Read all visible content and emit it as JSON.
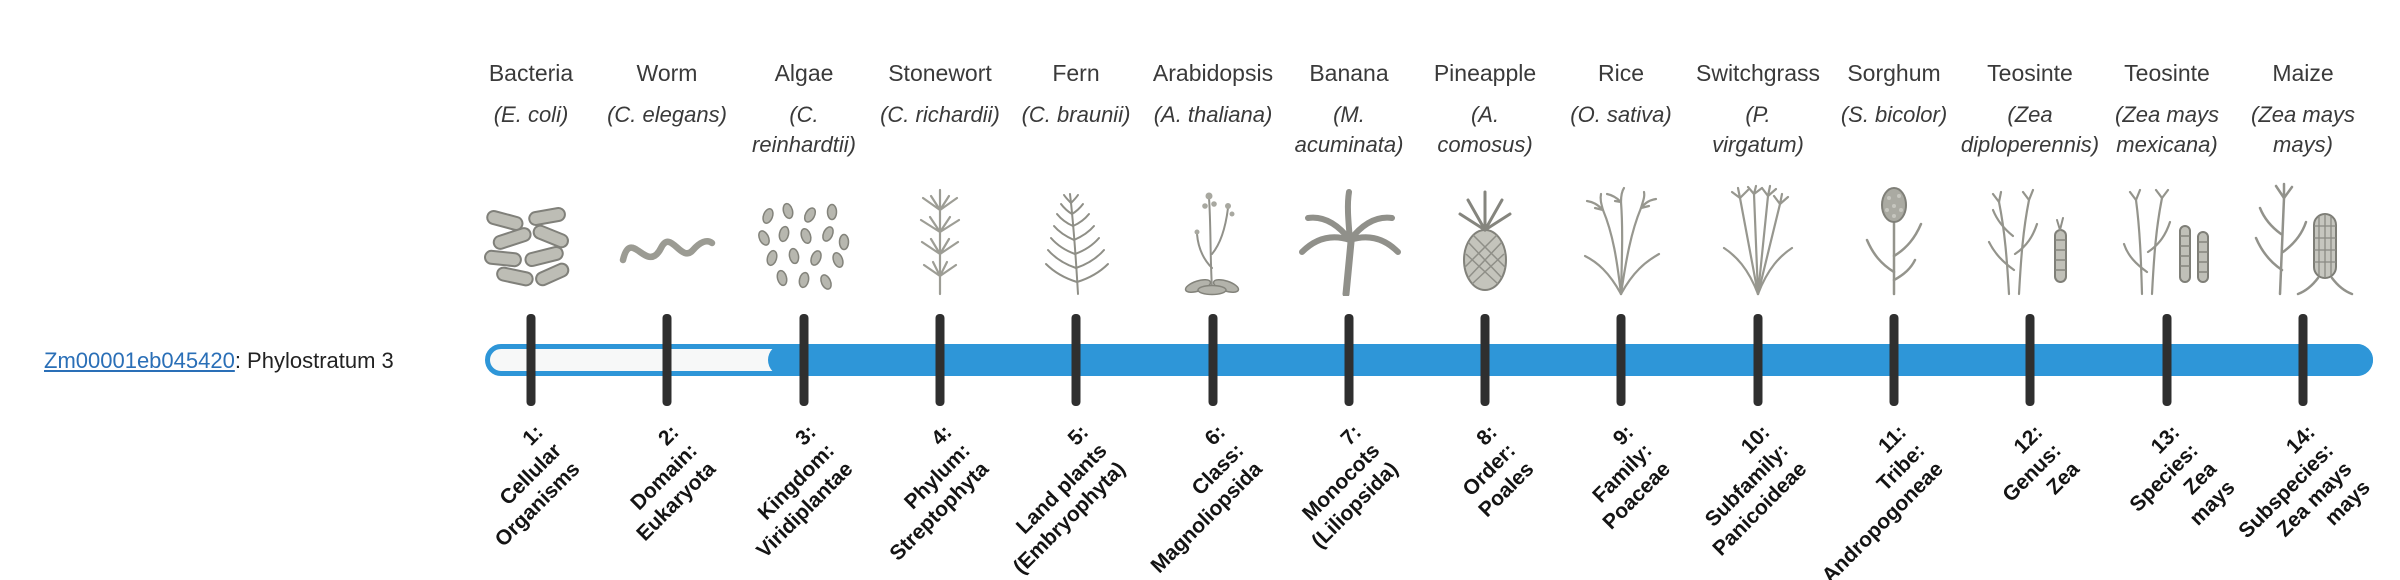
{
  "gene": {
    "id": "Zm00001eb045420",
    "suffix": ": Phylostratum 3",
    "phylostratum": 3
  },
  "bar": {
    "filled_from_stratum": 3,
    "total_strata": 14
  },
  "colors": {
    "bar_fill": "#2e96d8",
    "link": "#2a6fb7",
    "tick": "#2f2f2f"
  },
  "columns": [
    {
      "common": "Bacteria",
      "scientific": "(E. coli)",
      "icon": "bacteria-icon",
      "stratum_label": "1:\nCellular\nOrganisms"
    },
    {
      "common": "Worm",
      "scientific": "(C. elegans)",
      "icon": "worm-icon",
      "stratum_label": "2:\nDomain:\nEukaryota"
    },
    {
      "common": "Algae",
      "scientific": "(C.\nreinhardtii)",
      "icon": "algae-icon",
      "stratum_label": "3:\nKingdom:\nViridiplantae"
    },
    {
      "common": "Stonewort",
      "scientific": "(C. richardii)",
      "icon": "stonewort-icon",
      "stratum_label": "4:\nPhylum:\nStreptophyta"
    },
    {
      "common": "Fern",
      "scientific": "(C. braunii)",
      "icon": "fern-icon",
      "stratum_label": "5:\nLand plants\n(Embryophyta)"
    },
    {
      "common": "Arabidopsis",
      "scientific": "(A. thaliana)",
      "icon": "arabidopsis-icon",
      "stratum_label": "6:\nClass:\nMagnoliopsida"
    },
    {
      "common": "Banana",
      "scientific": "(M.\nacuminata)",
      "icon": "banana-icon",
      "stratum_label": "7:\nMonocots\n(Liliopsida)"
    },
    {
      "common": "Pineapple",
      "scientific": "(A.\ncomosus)",
      "icon": "pineapple-icon",
      "stratum_label": "8:\nOrder:\nPoales"
    },
    {
      "common": "Rice",
      "scientific": "(O. sativa)",
      "icon": "rice-icon",
      "stratum_label": "9:\nFamily:\nPoaceae"
    },
    {
      "common": "Switchgrass",
      "scientific": "(P.\nvirgatum)",
      "icon": "switchgrass-icon",
      "stratum_label": "10:\nSubfamily:\nPanicoideae"
    },
    {
      "common": "Sorghum",
      "scientific": "(S. bicolor)",
      "icon": "sorghum-icon",
      "stratum_label": "11:\nTribe:\nAndropogoneae"
    },
    {
      "common": "Teosinte",
      "scientific": "(Zea\ndiploperennis)",
      "icon": "teosinte-diplo-icon",
      "stratum_label": "12:\nGenus:\nZea"
    },
    {
      "common": "Teosinte",
      "scientific": "(Zea mays\nmexicana)",
      "icon": "teosinte-mex-icon",
      "stratum_label": "13:\nSpecies:\nZea\nmays"
    },
    {
      "common": "Maize",
      "scientific": "(Zea mays\nmays)",
      "icon": "maize-icon",
      "stratum_label": "14:\nSubspecies:\nZea mays\nmays"
    }
  ]
}
